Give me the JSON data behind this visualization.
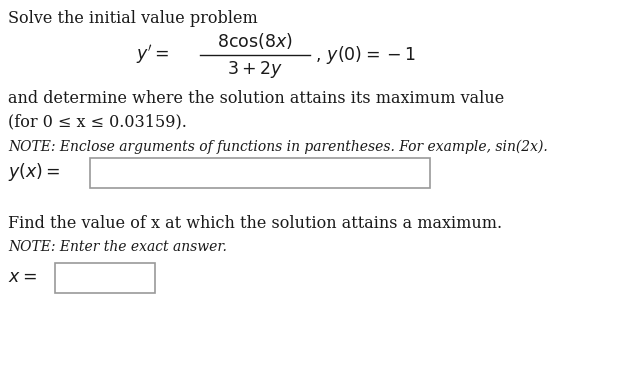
{
  "bg_color": "#ffffff",
  "text_color": "#1a1a1a",
  "line1": "Solve the initial value problem",
  "line3a": "and determine where the solution attains its maximum value",
  "line3b": "(for 0 ≤ x ≤ 0.03159).",
  "note1": "NOTE: Enclose arguments of functions in parentheses. For example, sin(2x).",
  "line5": "Find the value of x at which the solution attains a maximum.",
  "note2": "NOTE: Enter the exact answer.",
  "fs_body": 11.5,
  "fs_note": 10.0,
  "fs_math": 12.5
}
